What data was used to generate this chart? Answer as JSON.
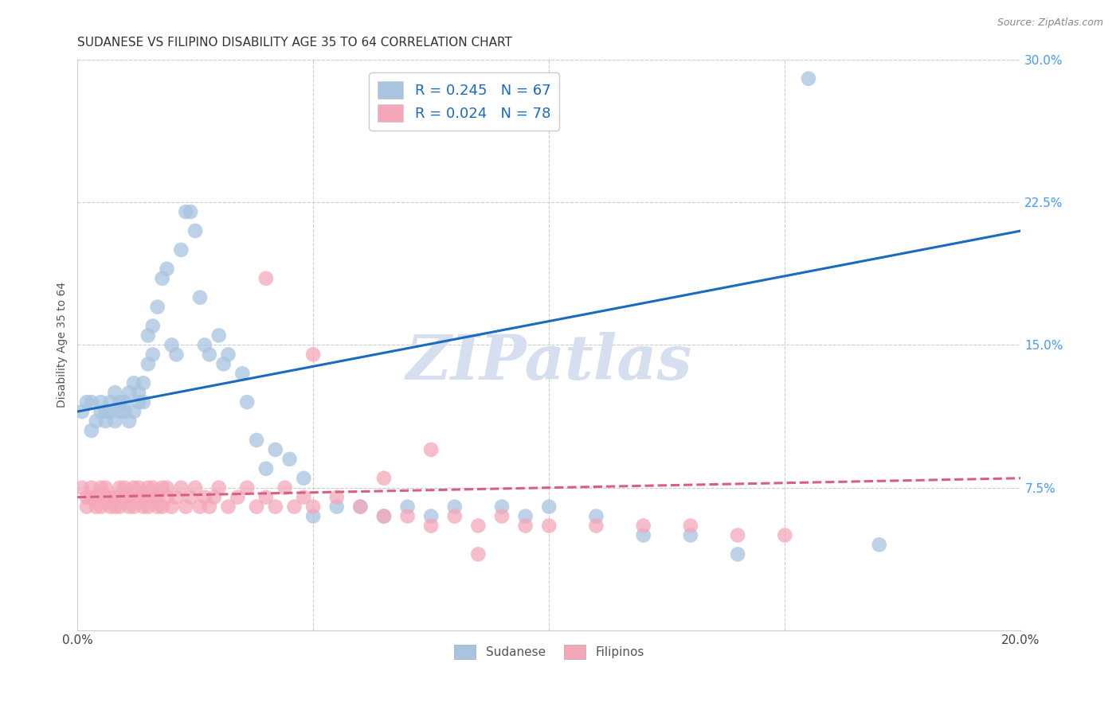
{
  "title": "SUDANESE VS FILIPINO DISABILITY AGE 35 TO 64 CORRELATION CHART",
  "source": "Source: ZipAtlas.com",
  "ylabel": "Disability Age 35 to 64",
  "xlim": [
    0.0,
    0.2
  ],
  "ylim": [
    0.0,
    0.3
  ],
  "xtick_positions": [
    0.0,
    0.05,
    0.1,
    0.15,
    0.2
  ],
  "xtick_labels": [
    "0.0%",
    "",
    "",
    "",
    "20.0%"
  ],
  "ytick_positions": [
    0.0,
    0.075,
    0.15,
    0.225,
    0.3
  ],
  "ytick_labels": [
    "",
    "7.5%",
    "15.0%",
    "22.5%",
    "30.0%"
  ],
  "sudanese_R": 0.245,
  "sudanese_N": 67,
  "filipino_R": 0.024,
  "filipino_N": 78,
  "sudanese_color": "#a8c4e0",
  "filipino_color": "#f4a7b9",
  "trendline_sudanese_color": "#1a6bbf",
  "trendline_filipino_color": "#d95f80",
  "ytick_color": "#4499ff",
  "watermark": "ZIPatlas",
  "watermark_color": "#d5dff0",
  "background_color": "#ffffff",
  "sudanese_x": [
    0.001,
    0.002,
    0.003,
    0.003,
    0.004,
    0.005,
    0.005,
    0.006,
    0.006,
    0.007,
    0.007,
    0.008,
    0.008,
    0.009,
    0.009,
    0.01,
    0.01,
    0.011,
    0.011,
    0.012,
    0.012,
    0.013,
    0.013,
    0.014,
    0.014,
    0.015,
    0.015,
    0.016,
    0.016,
    0.017,
    0.018,
    0.019,
    0.02,
    0.021,
    0.022,
    0.023,
    0.024,
    0.025,
    0.026,
    0.027,
    0.028,
    0.03,
    0.031,
    0.032,
    0.035,
    0.036,
    0.038,
    0.04,
    0.042,
    0.045,
    0.048,
    0.05,
    0.055,
    0.06,
    0.065,
    0.07,
    0.075,
    0.08,
    0.09,
    0.095,
    0.1,
    0.11,
    0.12,
    0.13,
    0.14,
    0.155,
    0.17
  ],
  "sudanese_y": [
    0.115,
    0.12,
    0.105,
    0.12,
    0.11,
    0.115,
    0.12,
    0.115,
    0.11,
    0.115,
    0.12,
    0.11,
    0.125,
    0.115,
    0.12,
    0.115,
    0.12,
    0.125,
    0.11,
    0.115,
    0.13,
    0.12,
    0.125,
    0.13,
    0.12,
    0.14,
    0.155,
    0.145,
    0.16,
    0.17,
    0.185,
    0.19,
    0.15,
    0.145,
    0.2,
    0.22,
    0.22,
    0.21,
    0.175,
    0.15,
    0.145,
    0.155,
    0.14,
    0.145,
    0.135,
    0.12,
    0.1,
    0.085,
    0.095,
    0.09,
    0.08,
    0.06,
    0.065,
    0.065,
    0.06,
    0.065,
    0.06,
    0.065,
    0.065,
    0.06,
    0.065,
    0.06,
    0.05,
    0.05,
    0.04,
    0.29,
    0.045
  ],
  "filipino_x": [
    0.001,
    0.002,
    0.002,
    0.003,
    0.003,
    0.004,
    0.004,
    0.005,
    0.005,
    0.006,
    0.006,
    0.007,
    0.007,
    0.008,
    0.008,
    0.009,
    0.009,
    0.01,
    0.01,
    0.011,
    0.011,
    0.012,
    0.012,
    0.013,
    0.013,
    0.014,
    0.014,
    0.015,
    0.015,
    0.016,
    0.016,
    0.017,
    0.017,
    0.018,
    0.018,
    0.019,
    0.019,
    0.02,
    0.021,
    0.022,
    0.023,
    0.024,
    0.025,
    0.026,
    0.027,
    0.028,
    0.029,
    0.03,
    0.032,
    0.034,
    0.036,
    0.038,
    0.04,
    0.042,
    0.044,
    0.046,
    0.048,
    0.05,
    0.055,
    0.06,
    0.065,
    0.07,
    0.075,
    0.08,
    0.085,
    0.09,
    0.095,
    0.1,
    0.11,
    0.12,
    0.13,
    0.14,
    0.15,
    0.065,
    0.075,
    0.085,
    0.04,
    0.05
  ],
  "filipino_y": [
    0.075,
    0.07,
    0.065,
    0.07,
    0.075,
    0.065,
    0.07,
    0.075,
    0.065,
    0.07,
    0.075,
    0.065,
    0.07,
    0.065,
    0.07,
    0.075,
    0.065,
    0.07,
    0.075,
    0.065,
    0.07,
    0.075,
    0.065,
    0.07,
    0.075,
    0.065,
    0.07,
    0.075,
    0.065,
    0.07,
    0.075,
    0.065,
    0.07,
    0.075,
    0.065,
    0.07,
    0.075,
    0.065,
    0.07,
    0.075,
    0.065,
    0.07,
    0.075,
    0.065,
    0.07,
    0.065,
    0.07,
    0.075,
    0.065,
    0.07,
    0.075,
    0.065,
    0.07,
    0.065,
    0.075,
    0.065,
    0.07,
    0.065,
    0.07,
    0.065,
    0.06,
    0.06,
    0.055,
    0.06,
    0.055,
    0.06,
    0.055,
    0.055,
    0.055,
    0.055,
    0.055,
    0.05,
    0.05,
    0.08,
    0.095,
    0.04,
    0.185,
    0.145
  ]
}
